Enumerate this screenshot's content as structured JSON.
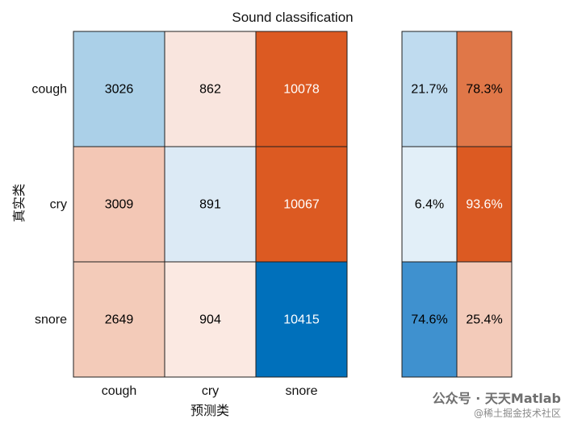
{
  "chart_data": {
    "type": "heatmap",
    "title": "Sound classification",
    "xlabel": "预测类",
    "ylabel": "真实类",
    "x_categories": [
      "cough",
      "cry",
      "snore"
    ],
    "y_categories": [
      "cough",
      "cry",
      "snore"
    ],
    "values": [
      [
        3026,
        862,
        10078
      ],
      [
        3009,
        891,
        10067
      ],
      [
        2649,
        904,
        10415
      ]
    ],
    "row_summary": [
      [
        "21.7%",
        "78.3%"
      ],
      [
        "6.4%",
        "93.6%"
      ],
      [
        "74.6%",
        "25.4%"
      ]
    ],
    "colors": {
      "matrix": [
        [
          "#abd0e8",
          "#f9e5de",
          "#dc5a22"
        ],
        [
          "#f3c7b5",
          "#dceaf5",
          "#dc5a22"
        ],
        [
          "#f3cbb9",
          "#fbe9e2",
          "#0070bb"
        ]
      ],
      "summary": [
        [
          "#bfdbef",
          "#e07748"
        ],
        [
          "#e2eff8",
          "#dc5a22"
        ],
        [
          "#3f91cf",
          "#f3cbba"
        ]
      ],
      "matrix_text": [
        [
          "#000000",
          "#000000",
          "#ffffff"
        ],
        [
          "#000000",
          "#000000",
          "#ffffff"
        ],
        [
          "#000000",
          "#000000",
          "#ffffff"
        ]
      ],
      "summary_text": [
        [
          "#000000",
          "#000000"
        ],
        [
          "#000000",
          "#ffffff"
        ],
        [
          "#000000",
          "#000000"
        ]
      ],
      "border": "#1f1f1f"
    },
    "grid": true,
    "legend": "none"
  },
  "watermark": {
    "line1": "公众号 · 天天Matlab",
    "line2": "@稀土掘金技术社区"
  }
}
